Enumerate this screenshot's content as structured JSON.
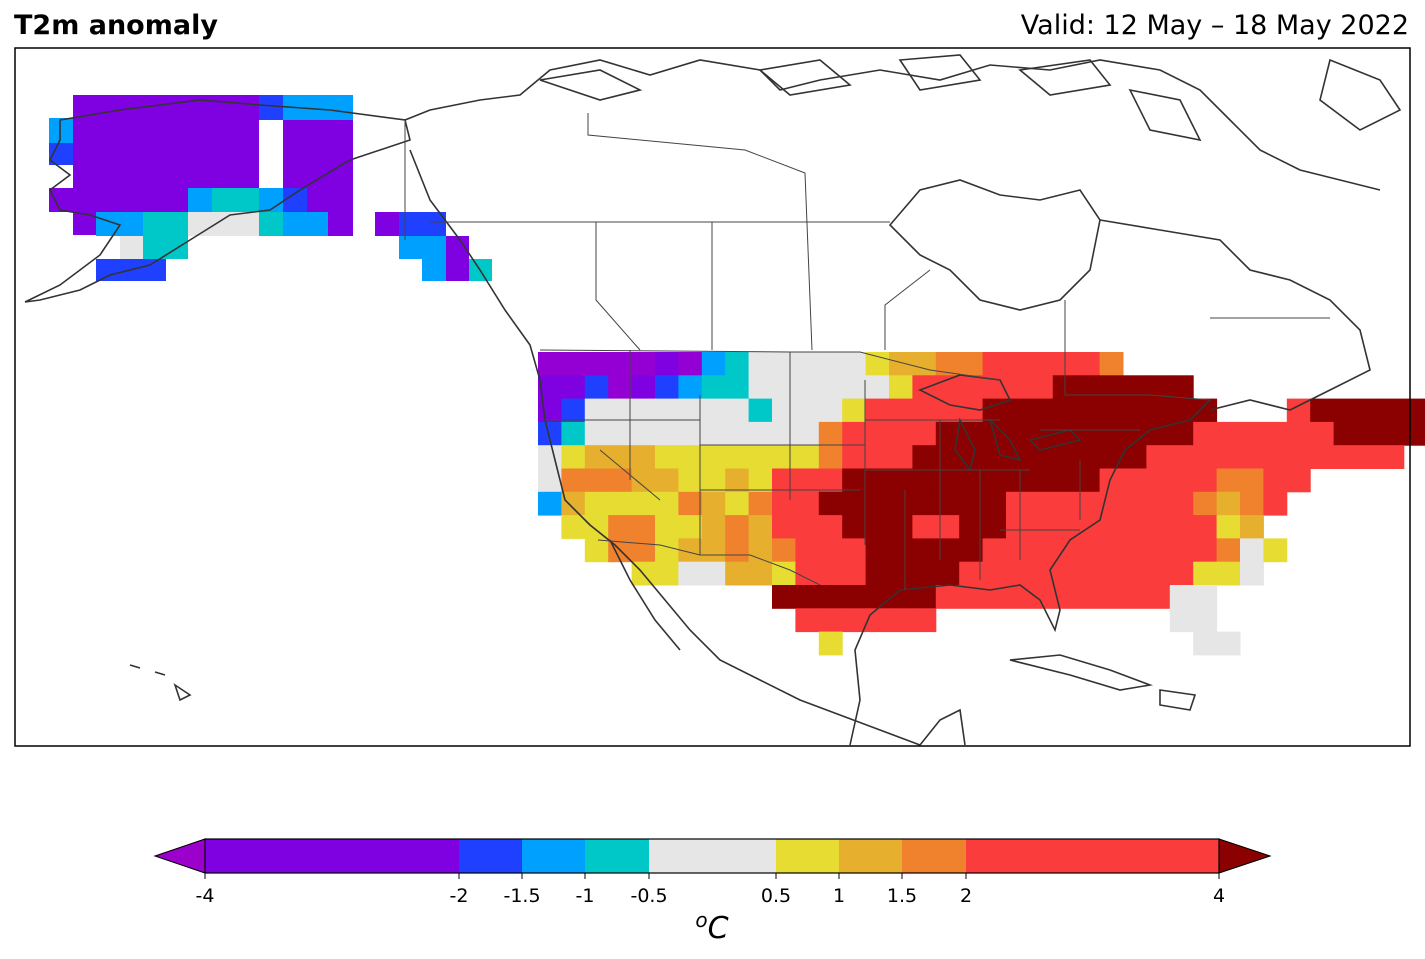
{
  "title": "T2m anomaly",
  "valid": "Valid: 12 May – 18 May 2022",
  "colorbar": {
    "unit_sup": "o",
    "unit": "C",
    "ticks": [
      "-4",
      "-2",
      "-1.5",
      "-1",
      "-0.5",
      "0.5",
      "1",
      "1.5",
      "2",
      "4"
    ],
    "bins": [
      {
        "range": "< -4",
        "color": "#9b00cc"
      },
      {
        "range": "-4 to -2",
        "color": "#7f00e0"
      },
      {
        "range": "-2 to -1.5",
        "color": "#2040ff"
      },
      {
        "range": "-1.5 to -1",
        "color": "#00a0ff"
      },
      {
        "range": "-1 to -0.5",
        "color": "#00c8c8"
      },
      {
        "range": "-0.5 to 0.5",
        "color": "#e6e6e6"
      },
      {
        "range": "0.5 to 1",
        "color": "#e6dc32"
      },
      {
        "range": "1 to 1.5",
        "color": "#e6af2d"
      },
      {
        "range": "1.5 to 2",
        "color": "#f0822d"
      },
      {
        "range": "2 to 4",
        "color": "#fa3c3c"
      },
      {
        "range": "> 4",
        "color": "#8b0000"
      }
    ]
  }
}
